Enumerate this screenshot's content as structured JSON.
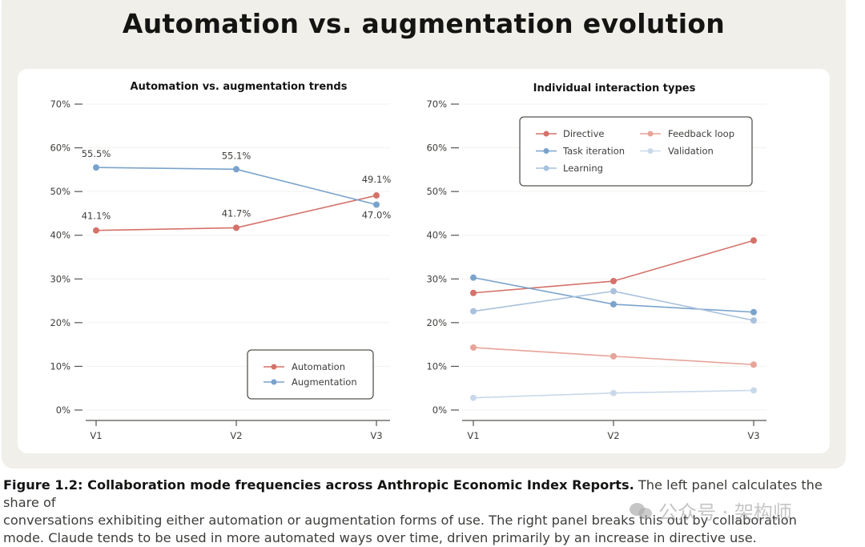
{
  "title": "Automation vs. augmentation evolution",
  "caption": {
    "bold": "Figure 1.2: Collaboration mode frequencies across Anthropic Economic Index Reports.",
    "line1_rest": " The left panel calculates the share of",
    "line2": "conversations exhibiting either automation or augmentation forms of use. The right panel breaks this out by collaboration",
    "line3": "mode. Claude tends to be used in more automated ways over time, driven primarily by an increase in directive use."
  },
  "watermark": {
    "text": "公众号 · 架构师",
    "icon": "wechat-icon"
  },
  "colors": {
    "automation": "#d4726a",
    "augmentation": "#7aa3cc",
    "directive": "#d4726a",
    "task_iteration": "#7aa3cc",
    "learning": "#a9c1dc",
    "feedback_loop": "#e6a499",
    "validation": "#c9d9ea"
  },
  "chart_data": [
    {
      "type": "line",
      "title": "Automation vs. augmentation trends",
      "x": [
        "V1",
        "V2",
        "V3"
      ],
      "ylim": [
        0,
        70
      ],
      "yticks": [
        "0%",
        "10%",
        "20%",
        "30%",
        "40%",
        "50%",
        "60%",
        "70%"
      ],
      "grid": true,
      "legend_position": "bottom-right",
      "series": [
        {
          "name": "Automation",
          "color_key": "automation",
          "values": [
            41.1,
            41.7,
            49.1
          ],
          "labels": [
            "41.1%",
            "41.7%",
            "49.1%"
          ]
        },
        {
          "name": "Augmentation",
          "color_key": "augmentation",
          "values": [
            55.5,
            55.1,
            47.0
          ],
          "labels": [
            "55.5%",
            "55.1%",
            "47.0%"
          ]
        }
      ]
    },
    {
      "type": "line",
      "title": "Individual interaction types",
      "x": [
        "V1",
        "V2",
        "V3"
      ],
      "ylim": [
        0,
        70
      ],
      "yticks": [
        "0%",
        "10%",
        "20%",
        "30%",
        "40%",
        "50%",
        "60%",
        "70%"
      ],
      "grid": true,
      "legend_position": "top-right",
      "series": [
        {
          "name": "Directive",
          "color_key": "directive",
          "values": [
            26.8,
            29.5,
            38.8
          ]
        },
        {
          "name": "Task iteration",
          "color_key": "task_iteration",
          "values": [
            30.3,
            24.2,
            22.4
          ]
        },
        {
          "name": "Learning",
          "color_key": "learning",
          "values": [
            22.6,
            27.2,
            20.5
          ]
        },
        {
          "name": "Feedback loop",
          "color_key": "feedback_loop",
          "values": [
            14.3,
            12.3,
            10.4
          ]
        },
        {
          "name": "Validation",
          "color_key": "validation",
          "values": [
            2.8,
            3.9,
            4.5
          ]
        }
      ]
    }
  ]
}
